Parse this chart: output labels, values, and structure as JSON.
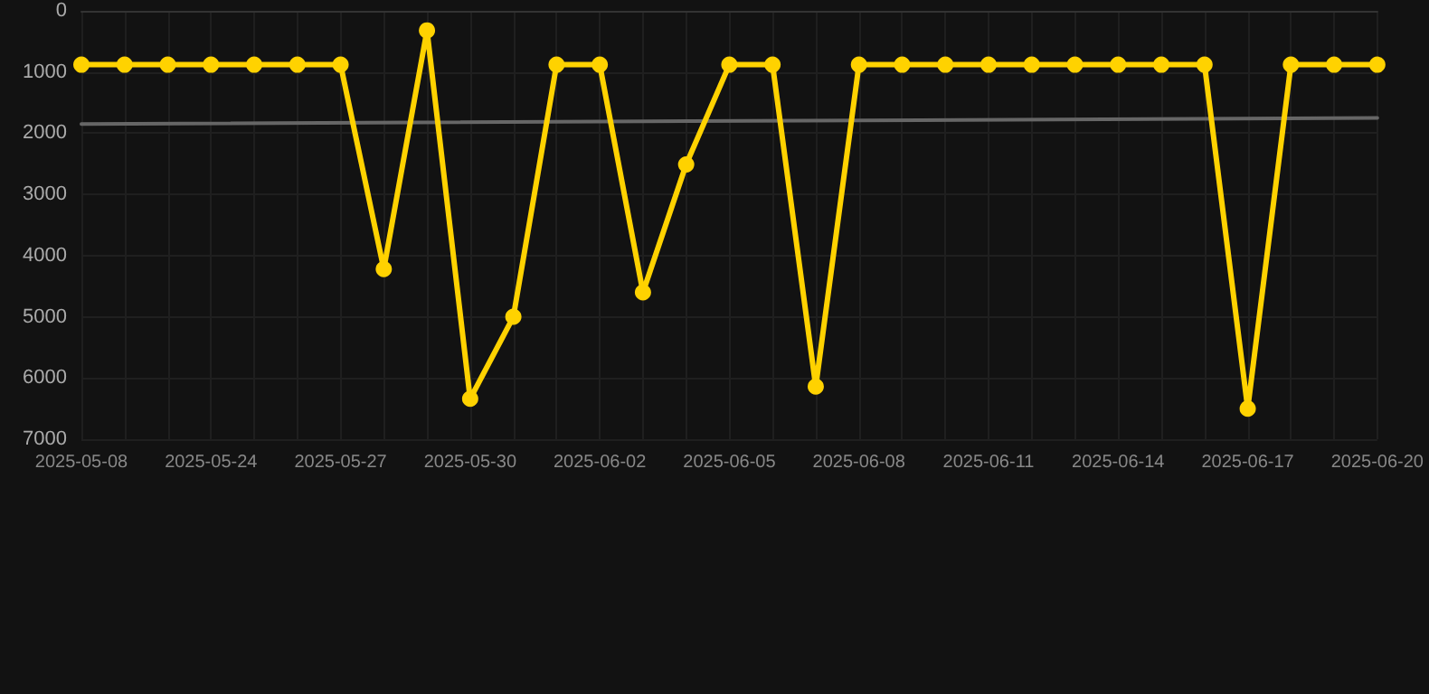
{
  "chart_data": {
    "type": "line",
    "categories": [
      "2025-05-08",
      null,
      null,
      "2025-05-24",
      null,
      null,
      "2025-05-27",
      null,
      null,
      "2025-05-30",
      null,
      null,
      "2025-06-02",
      null,
      null,
      "2025-06-05",
      null,
      null,
      "2025-06-08",
      null,
      null,
      "2025-06-11",
      null,
      null,
      "2025-06-14",
      null,
      null,
      "2025-06-17",
      null,
      null,
      "2025-06-20"
    ],
    "series": [
      {
        "color": "#ffd200",
        "marker": "circle",
        "values": [
          880,
          880,
          880,
          880,
          880,
          880,
          880,
          4220,
          320,
          6340,
          5000,
          880,
          880,
          4600,
          2510,
          880,
          880,
          6140,
          880,
          880,
          880,
          880,
          880,
          880,
          880,
          880,
          880,
          6500,
          880,
          880,
          880
        ]
      },
      {
        "color": "#666666",
        "marker": "none",
        "values": [
          1850,
          null,
          null,
          null,
          null,
          null,
          null,
          null,
          null,
          null,
          null,
          null,
          null,
          null,
          null,
          null,
          null,
          null,
          null,
          null,
          null,
          null,
          null,
          null,
          null,
          null,
          null,
          null,
          null,
          null,
          1750
        ]
      }
    ],
    "ylim": [
      7000,
      0
    ],
    "yticks": [
      0,
      1000,
      2000,
      3000,
      4000,
      5000,
      6000,
      7000
    ],
    "grid": true,
    "line_style": "solid"
  }
}
